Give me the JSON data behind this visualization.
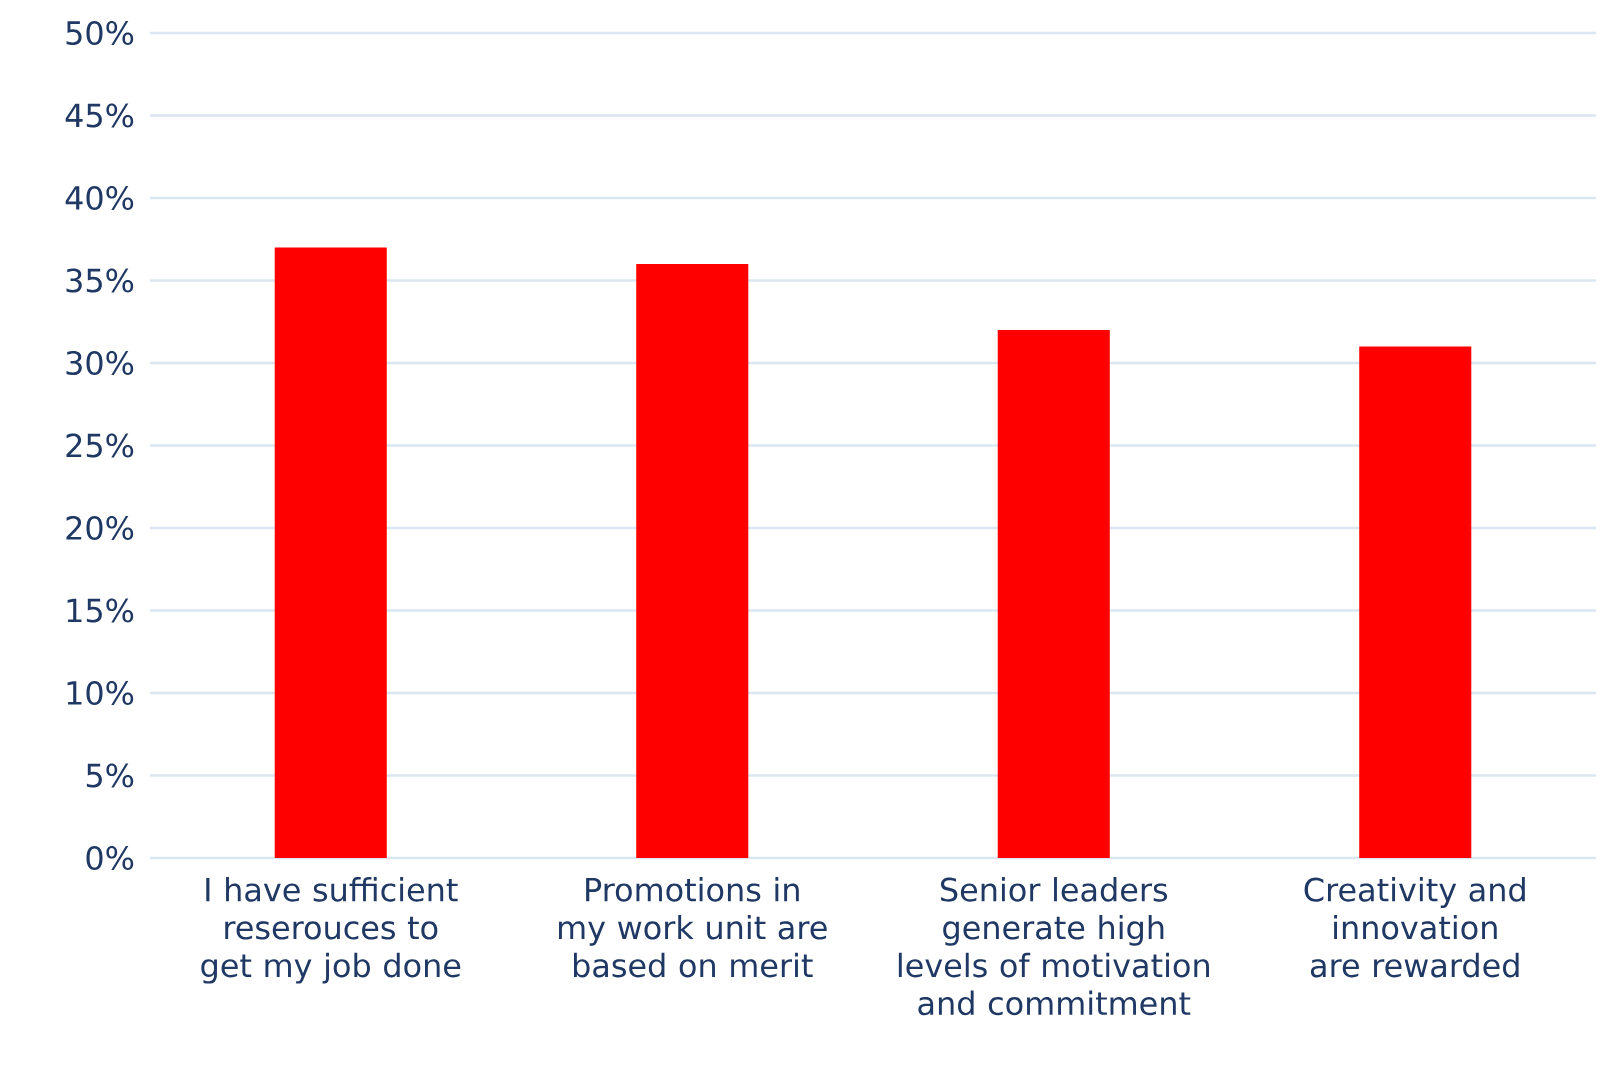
{
  "chart_data": {
    "type": "bar",
    "categories": [
      "I have sufficient reserouces to get my job done",
      "Promotions in my work unit are based on merit",
      "Senior leaders generate high levels of motivation and commitment",
      "Creativity and innovation are rewarded"
    ],
    "values": [
      37,
      36,
      32,
      31
    ],
    "color": "#ff0000",
    "ylim": [
      0,
      50
    ],
    "yticks": [
      {
        "value": 0,
        "label": "0%"
      },
      {
        "value": 5,
        "label": "5%"
      },
      {
        "value": 10,
        "label": "10%"
      },
      {
        "value": 15,
        "label": "15%"
      },
      {
        "value": 20,
        "label": "20%"
      },
      {
        "value": 25,
        "label": "25%"
      },
      {
        "value": 30,
        "label": "30%"
      },
      {
        "value": 35,
        "label": "35%"
      },
      {
        "value": 40,
        "label": "40%"
      },
      {
        "value": 45,
        "label": "45%"
      },
      {
        "value": 50,
        "label": "50%"
      }
    ],
    "grid": "y"
  }
}
